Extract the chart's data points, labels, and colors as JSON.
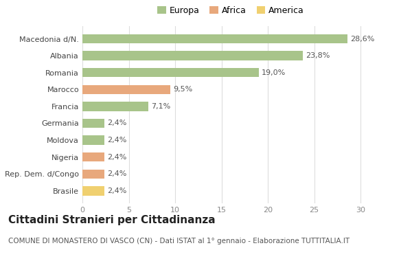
{
  "categories": [
    "Macedonia d/N.",
    "Albania",
    "Romania",
    "Marocco",
    "Francia",
    "Germania",
    "Moldova",
    "Nigeria",
    "Rep. Dem. d/Congo",
    "Brasile"
  ],
  "values": [
    28.6,
    23.8,
    19.0,
    9.5,
    7.1,
    2.4,
    2.4,
    2.4,
    2.4,
    2.4
  ],
  "labels": [
    "28,6%",
    "23,8%",
    "19,0%",
    "9,5%",
    "7,1%",
    "2,4%",
    "2,4%",
    "2,4%",
    "2,4%",
    "2,4%"
  ],
  "colors": [
    "#a8c48a",
    "#a8c48a",
    "#a8c48a",
    "#e8a87c",
    "#a8c48a",
    "#a8c48a",
    "#a8c48a",
    "#e8a87c",
    "#e8a87c",
    "#f0d070"
  ],
  "legend": [
    {
      "label": "Europa",
      "color": "#a8c48a"
    },
    {
      "label": "Africa",
      "color": "#e8a87c"
    },
    {
      "label": "America",
      "color": "#f0d070"
    }
  ],
  "title": "Cittadini Stranieri per Cittadinanza",
  "subtitle": "COMUNE DI MONASTERO DI VASCO (CN) - Dati ISTAT al 1° gennaio - Elaborazione TUTTITALIA.IT",
  "xlim": [
    0,
    32
  ],
  "xticks": [
    0,
    5,
    10,
    15,
    20,
    25,
    30
  ],
  "background_color": "#ffffff",
  "grid_color": "#dddddd",
  "bar_height": 0.55,
  "title_fontsize": 11,
  "subtitle_fontsize": 7.5,
  "label_fontsize": 8,
  "tick_fontsize": 8,
  "ytick_fontsize": 8,
  "legend_fontsize": 9
}
